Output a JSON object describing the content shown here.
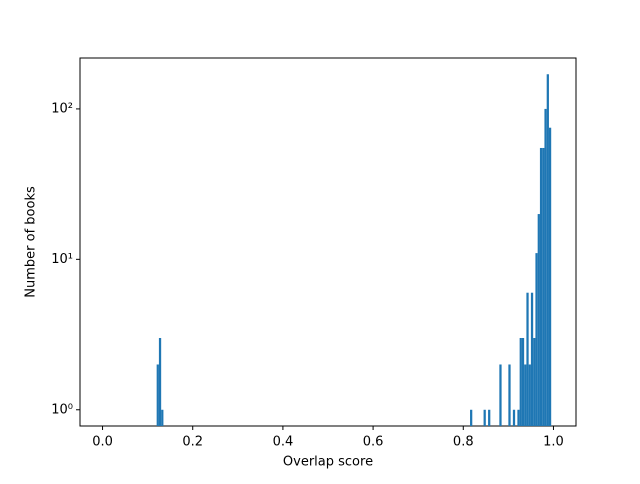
{
  "chart_data": {
    "type": "histogram",
    "xlabel": "Overlap score",
    "ylabel": "Number of books",
    "bins": [
      0.12,
      0.125,
      0.13,
      0.135,
      0.815,
      0.82,
      0.845,
      0.85,
      0.855,
      0.86,
      0.88,
      0.885,
      0.9,
      0.905,
      0.91,
      0.915,
      0.92,
      0.925,
      0.93,
      0.935,
      0.94,
      0.945,
      0.95,
      0.955,
      0.96,
      0.965,
      0.97,
      0.975,
      0.98,
      0.985,
      0.99,
      0.995
    ],
    "values": [
      2,
      3,
      1,
      0,
      1,
      0,
      1,
      0,
      1,
      0,
      2,
      0,
      2,
      0,
      1,
      0,
      1,
      3,
      3,
      2,
      6,
      2,
      6,
      3,
      11,
      20,
      55,
      55,
      100,
      170,
      75
    ],
    "color": "#1f77b4",
    "xlim": [
      -0.05,
      1.05
    ],
    "xticks": [
      {
        "value": 0,
        "label": "0.0"
      },
      {
        "value": 0.2,
        "label": "0.2"
      },
      {
        "value": 0.4,
        "label": "0.4"
      },
      {
        "value": 0.6,
        "label": "0.6"
      },
      {
        "value": 0.8,
        "label": "0.8"
      },
      {
        "value": 1,
        "label": "1.0"
      }
    ],
    "ylim": [
      0.78,
      218
    ],
    "yticks": [
      {
        "value": 1,
        "label": "10⁰"
      },
      {
        "value": 10,
        "label": "10¹"
      },
      {
        "value": 100,
        "label": "10²"
      }
    ],
    "yscale": "log"
  }
}
